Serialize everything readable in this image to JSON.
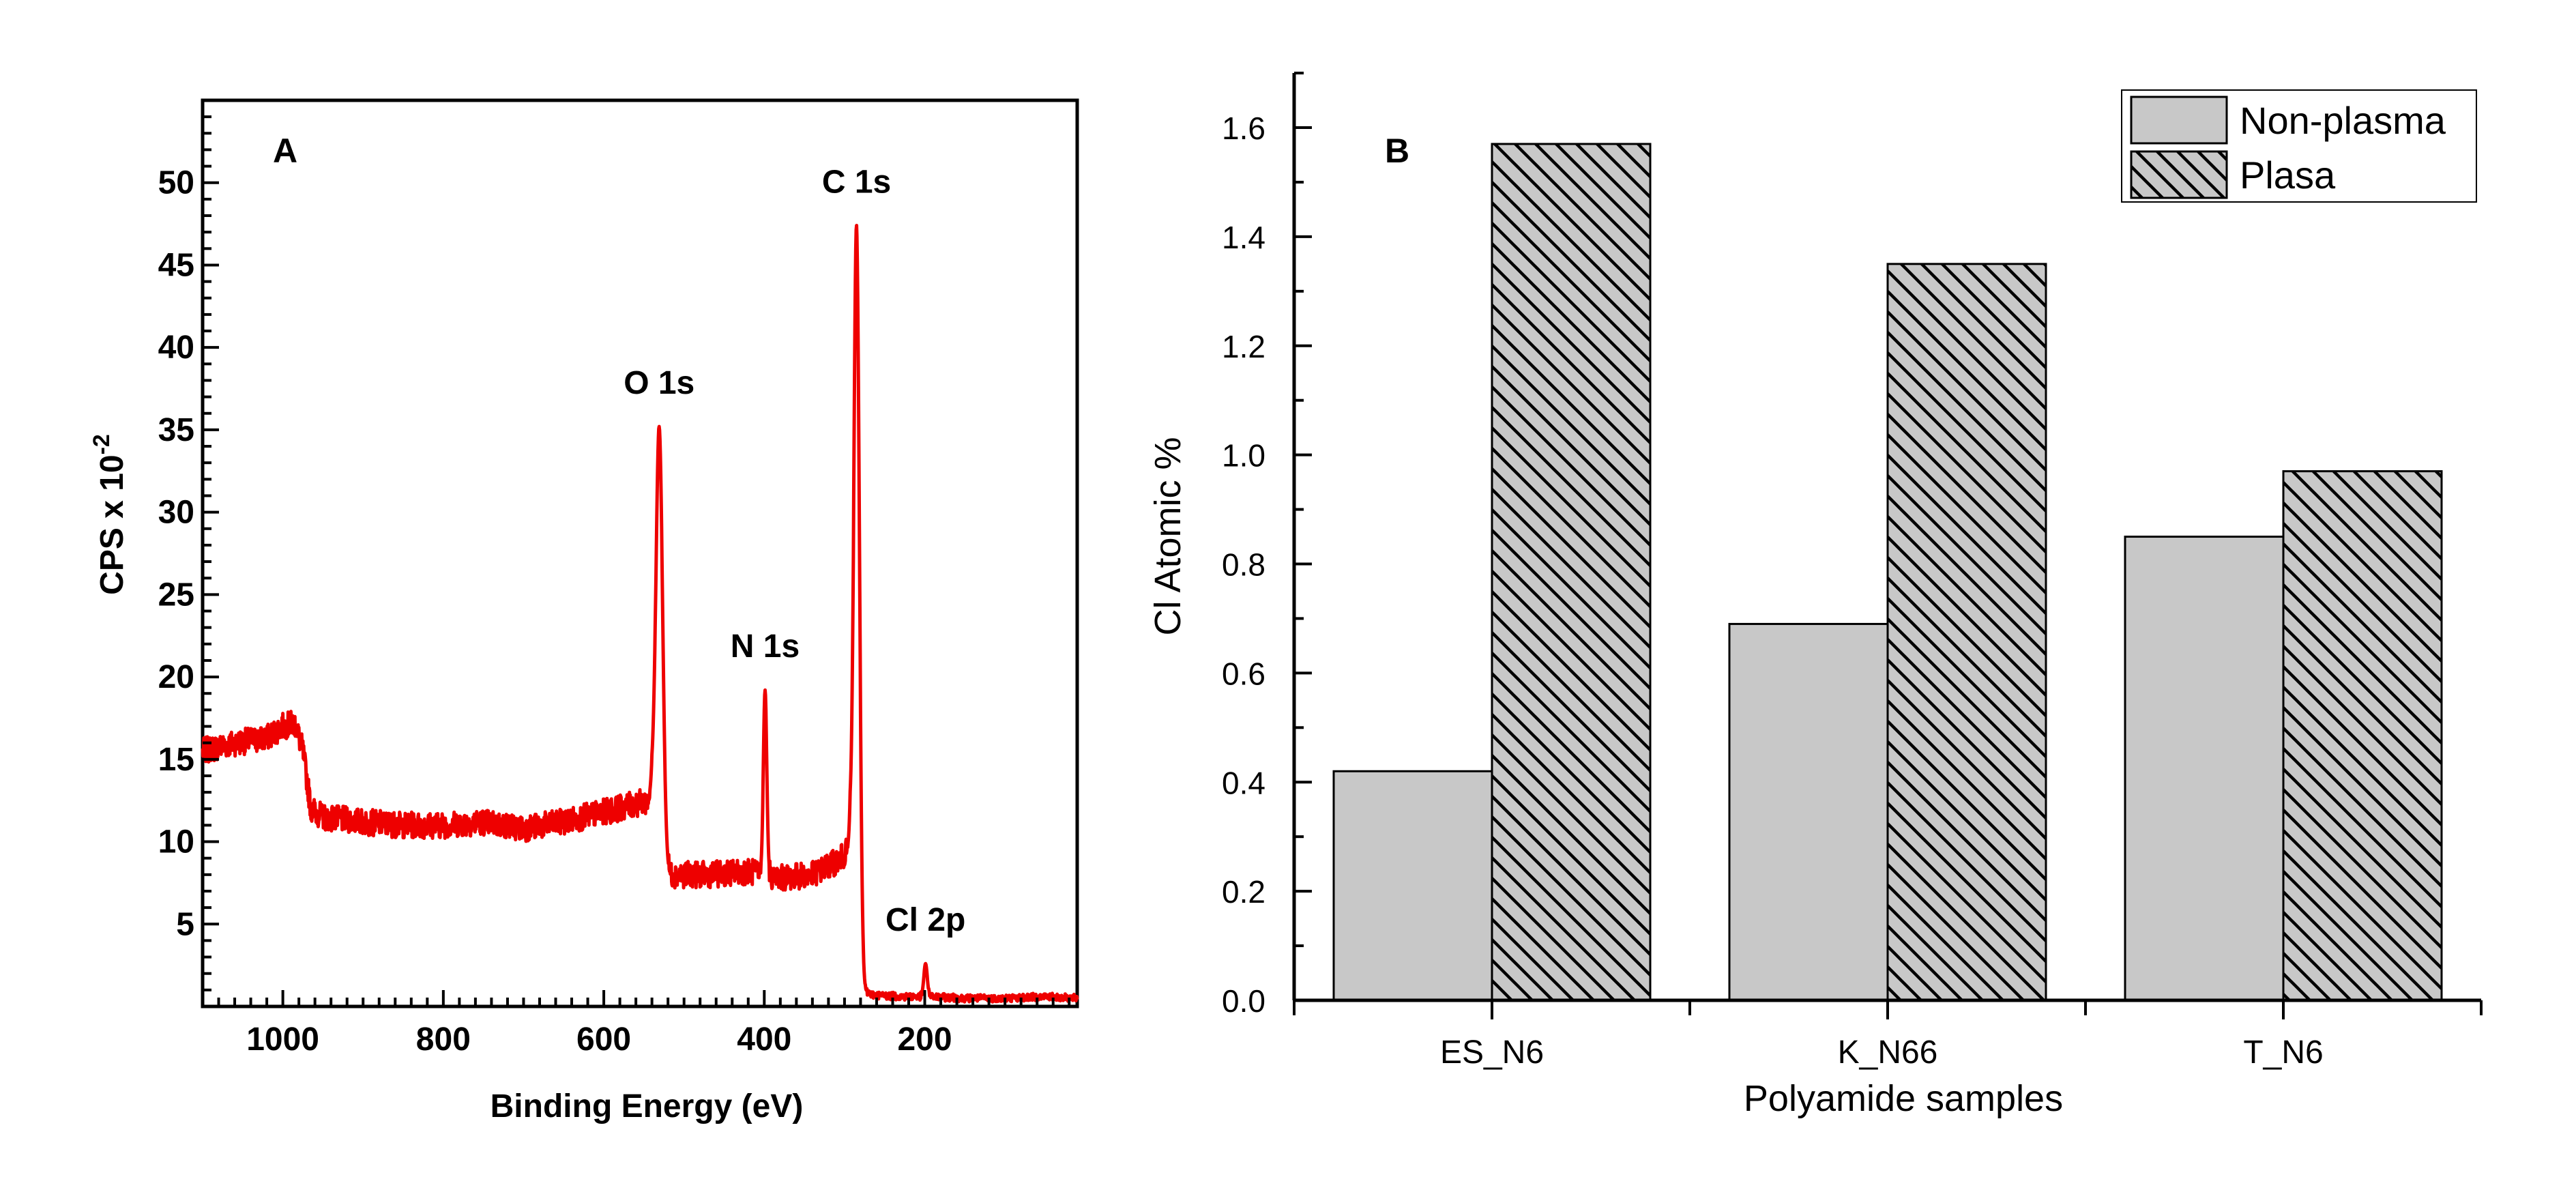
{
  "chart_data": [
    {
      "type": "line",
      "panel_label": "A",
      "title": "",
      "xlabel": "Binding Energy (eV)",
      "ylabel": "CPS x 10",
      "ylabel_exponent": "-2",
      "xlim": [
        1100,
        10
      ],
      "ylim": [
        0,
        55
      ],
      "x_ticks": [
        1000,
        800,
        600,
        400,
        200
      ],
      "y_ticks": [
        5,
        10,
        15,
        20,
        25,
        30,
        35,
        40,
        45,
        50
      ],
      "x_tick_labels": [
        "1000",
        "800",
        "600",
        "400",
        "200"
      ],
      "y_tick_labels": [
        "5",
        "10",
        "15",
        "20",
        "25",
        "30",
        "35",
        "40",
        "45",
        "50"
      ],
      "line_color": "#ee0000",
      "baseline_points": [
        [
          1100,
          15.5
        ],
        [
          1060,
          16.0
        ],
        [
          1020,
          16.3
        ],
        [
          1000,
          17.0
        ],
        [
          985,
          17.2
        ],
        [
          975,
          15.5
        ],
        [
          965,
          12.0
        ],
        [
          950,
          11.5
        ],
        [
          900,
          11.2
        ],
        [
          850,
          11.0
        ],
        [
          800,
          11.0
        ],
        [
          750,
          11.2
        ],
        [
          700,
          10.8
        ],
        [
          650,
          11.2
        ],
        [
          600,
          11.8
        ],
        [
          560,
          12.3
        ],
        [
          540,
          12.5
        ],
        [
          535,
          9.0
        ],
        [
          520,
          8.0
        ],
        [
          470,
          8.0
        ],
        [
          420,
          8.2
        ],
        [
          380,
          7.8
        ],
        [
          340,
          8.0
        ],
        [
          310,
          8.8
        ],
        [
          293,
          9.5
        ],
        [
          289,
          3.0
        ],
        [
          284,
          1.0
        ],
        [
          265,
          0.7
        ],
        [
          230,
          0.6
        ],
        [
          200,
          0.6
        ],
        [
          150,
          0.5
        ],
        [
          100,
          0.5
        ],
        [
          50,
          0.6
        ],
        [
          10,
          0.5
        ]
      ],
      "peaks": [
        {
          "label": "C 1s",
          "x": 285,
          "y": 47.4,
          "width": 5
        },
        {
          "label": "O 1s",
          "x": 531,
          "y": 35.2,
          "width": 6
        },
        {
          "label": "N 1s",
          "x": 399,
          "y": 19.2,
          "width": 3
        },
        {
          "label": "Cl 2p",
          "x": 199,
          "y": 2.6,
          "width": 3
        }
      ],
      "annotations": [
        "C 1s",
        "O 1s",
        "N 1s",
        "Cl 2p"
      ]
    },
    {
      "type": "bar",
      "panel_label": "B",
      "title": "",
      "xlabel": "Polyamide samples",
      "ylabel": "Cl Atomic %",
      "categories": [
        "ES_N6",
        "K_N66",
        "T_N6"
      ],
      "series": [
        {
          "name": "Non-plasma",
          "values": [
            0.42,
            0.69,
            0.85
          ],
          "fill": "#c8c8c8",
          "pattern": "solid"
        },
        {
          "name": "Plasa",
          "values": [
            1.57,
            1.35,
            0.97
          ],
          "fill": "#c8c8c8",
          "pattern": "diagonal-hatch"
        }
      ],
      "ylim": [
        0,
        1.7
      ],
      "y_ticks": [
        0.0,
        0.2,
        0.4,
        0.6,
        0.8,
        1.0,
        1.2,
        1.4,
        1.6
      ],
      "y_tick_labels": [
        "0.0",
        "0.2",
        "0.4",
        "0.6",
        "0.8",
        "1.0",
        "1.2",
        "1.4",
        "1.6"
      ],
      "legend_position": "top-right",
      "grid": false
    }
  ]
}
